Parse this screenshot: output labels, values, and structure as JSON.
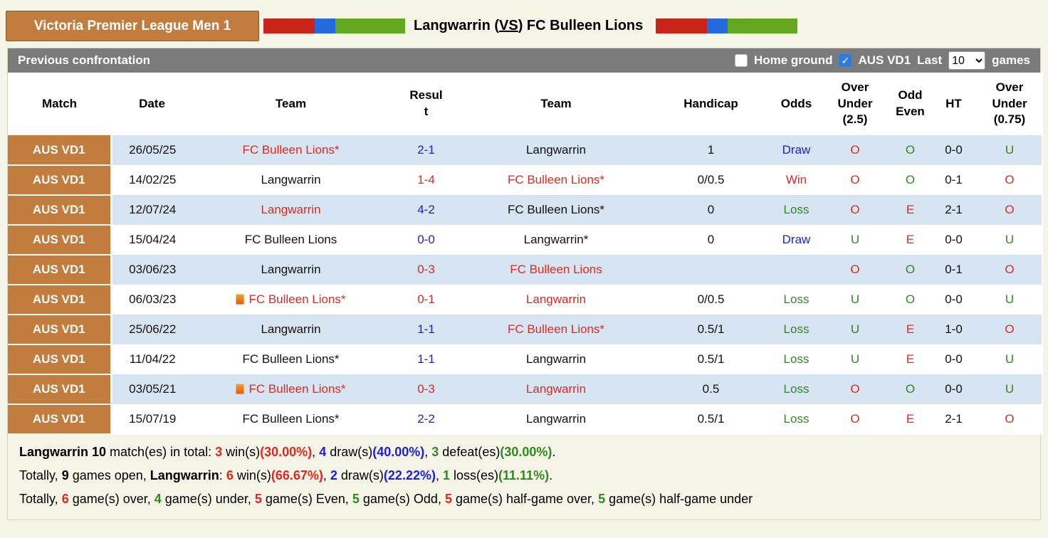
{
  "colors": {
    "red": "#e0281e",
    "blue": "#1b21d8",
    "green": "#2e8a1f",
    "orange": "#c17c3e",
    "row_alt": "#d7e4f1",
    "toolbar_gray": "#7b7b7b",
    "checkbox_blue": "#2e7ce0",
    "page_bg": "#f5f4e7",
    "flag_red": "#c9241a",
    "flag_blue": "#2469dd",
    "flag_green": "#63a81e"
  },
  "header": {
    "league": "Victoria Premier League Men 1",
    "home_team": "Langwarrin",
    "vs_open": " (",
    "vs_label": "VS",
    "vs_close": ") ",
    "away_team": "FC Bulleen Lions"
  },
  "toolbar": {
    "title": "Previous confrontation",
    "home_ground": {
      "label": "Home ground",
      "checked": false
    },
    "league_filter": {
      "label": "AUS VD1",
      "checked": true
    },
    "last_label": "Last",
    "games_count": "10",
    "games_label": "games"
  },
  "table": {
    "headers": [
      "Match",
      "Date",
      "Team",
      "Resul\nt",
      "Team",
      "Handicap",
      "Odds",
      "Over\nUnder\n(2.5)",
      "Odd\nEven",
      "HT",
      "Over\nUnder\n(0.75)"
    ],
    "rows": [
      {
        "match": "AUS VD1",
        "date": "26/05/25",
        "team1": {
          "text": "FC Bulleen Lions*",
          "color": "red",
          "icon": false
        },
        "result": {
          "text": "2-1",
          "color": "blue"
        },
        "team2": {
          "text": "Langwarrin",
          "color": "black"
        },
        "handicap": "1",
        "odds": {
          "text": "Draw",
          "color": "blue"
        },
        "over_under_25": {
          "text": "O",
          "color": "red"
        },
        "odd_even": {
          "text": "O",
          "color": "green"
        },
        "ht": "0-0",
        "over_under_075": {
          "text": "U",
          "color": "green"
        }
      },
      {
        "match": "AUS VD1",
        "date": "14/02/25",
        "team1": {
          "text": "Langwarrin",
          "color": "black",
          "icon": false
        },
        "result": {
          "text": "1-4",
          "color": "red"
        },
        "team2": {
          "text": "FC Bulleen Lions*",
          "color": "red"
        },
        "handicap": "0/0.5",
        "odds": {
          "text": "Win",
          "color": "red"
        },
        "over_under_25": {
          "text": "O",
          "color": "red"
        },
        "odd_even": {
          "text": "O",
          "color": "green"
        },
        "ht": "0-1",
        "over_under_075": {
          "text": "O",
          "color": "red"
        }
      },
      {
        "match": "AUS VD1",
        "date": "12/07/24",
        "team1": {
          "text": "Langwarrin",
          "color": "red",
          "icon": false
        },
        "result": {
          "text": "4-2",
          "color": "blue"
        },
        "team2": {
          "text": "FC Bulleen Lions*",
          "color": "black"
        },
        "handicap": "0",
        "odds": {
          "text": "Loss",
          "color": "green"
        },
        "over_under_25": {
          "text": "O",
          "color": "red"
        },
        "odd_even": {
          "text": "E",
          "color": "red"
        },
        "ht": "2-1",
        "over_under_075": {
          "text": "O",
          "color": "red"
        }
      },
      {
        "match": "AUS VD1",
        "date": "15/04/24",
        "team1": {
          "text": "FC Bulleen Lions",
          "color": "black",
          "icon": false
        },
        "result": {
          "text": "0-0",
          "color": "blue"
        },
        "team2": {
          "text": "Langwarrin*",
          "color": "black"
        },
        "handicap": "0",
        "odds": {
          "text": "Draw",
          "color": "blue"
        },
        "over_under_25": {
          "text": "U",
          "color": "green"
        },
        "odd_even": {
          "text": "E",
          "color": "red"
        },
        "ht": "0-0",
        "over_under_075": {
          "text": "U",
          "color": "green"
        }
      },
      {
        "match": "AUS VD1",
        "date": "03/06/23",
        "team1": {
          "text": "Langwarrin",
          "color": "black",
          "icon": false
        },
        "result": {
          "text": "0-3",
          "color": "red"
        },
        "team2": {
          "text": "FC Bulleen Lions",
          "color": "red"
        },
        "handicap": "",
        "odds": {
          "text": "",
          "color": "black"
        },
        "over_under_25": {
          "text": "O",
          "color": "red"
        },
        "odd_even": {
          "text": "O",
          "color": "green"
        },
        "ht": "0-1",
        "over_under_075": {
          "text": "O",
          "color": "red"
        }
      },
      {
        "match": "AUS VD1",
        "date": "06/03/23",
        "team1": {
          "text": "FC Bulleen Lions*",
          "color": "red",
          "icon": true
        },
        "result": {
          "text": "0-1",
          "color": "red"
        },
        "team2": {
          "text": "Langwarrin",
          "color": "red"
        },
        "handicap": "0/0.5",
        "odds": {
          "text": "Loss",
          "color": "green"
        },
        "over_under_25": {
          "text": "U",
          "color": "green"
        },
        "odd_even": {
          "text": "O",
          "color": "green"
        },
        "ht": "0-0",
        "over_under_075": {
          "text": "U",
          "color": "green"
        }
      },
      {
        "match": "AUS VD1",
        "date": "25/06/22",
        "team1": {
          "text": "Langwarrin",
          "color": "black",
          "icon": false
        },
        "result": {
          "text": "1-1",
          "color": "blue"
        },
        "team2": {
          "text": "FC Bulleen Lions*",
          "color": "red"
        },
        "handicap": "0.5/1",
        "odds": {
          "text": "Loss",
          "color": "green"
        },
        "over_under_25": {
          "text": "U",
          "color": "green"
        },
        "odd_even": {
          "text": "E",
          "color": "red"
        },
        "ht": "1-0",
        "over_under_075": {
          "text": "O",
          "color": "red"
        }
      },
      {
        "match": "AUS VD1",
        "date": "11/04/22",
        "team1": {
          "text": "FC Bulleen Lions*",
          "color": "black",
          "icon": false
        },
        "result": {
          "text": "1-1",
          "color": "blue"
        },
        "team2": {
          "text": "Langwarrin",
          "color": "black"
        },
        "handicap": "0.5/1",
        "odds": {
          "text": "Loss",
          "color": "green"
        },
        "over_under_25": {
          "text": "U",
          "color": "green"
        },
        "odd_even": {
          "text": "E",
          "color": "red"
        },
        "ht": "0-0",
        "over_under_075": {
          "text": "U",
          "color": "green"
        }
      },
      {
        "match": "AUS VD1",
        "date": "03/05/21",
        "team1": {
          "text": "FC Bulleen Lions*",
          "color": "red",
          "icon": true
        },
        "result": {
          "text": "0-3",
          "color": "red"
        },
        "team2": {
          "text": "Langwarrin",
          "color": "red"
        },
        "handicap": "0.5",
        "odds": {
          "text": "Loss",
          "color": "green"
        },
        "over_under_25": {
          "text": "O",
          "color": "red"
        },
        "odd_even": {
          "text": "O",
          "color": "green"
        },
        "ht": "0-0",
        "over_under_075": {
          "text": "U",
          "color": "green"
        }
      },
      {
        "match": "AUS VD1",
        "date": "15/07/19",
        "team1": {
          "text": "FC Bulleen Lions*",
          "color": "black",
          "icon": false
        },
        "result": {
          "text": "2-2",
          "color": "blue"
        },
        "team2": {
          "text": "Langwarrin",
          "color": "black"
        },
        "handicap": "0.5/1",
        "odds": {
          "text": "Loss",
          "color": "green"
        },
        "over_under_25": {
          "text": "O",
          "color": "red"
        },
        "odd_even": {
          "text": "E",
          "color": "red"
        },
        "ht": "2-1",
        "over_under_075": {
          "text": "O",
          "color": "red"
        }
      }
    ]
  },
  "summary": [
    [
      {
        "t": "Langwarrin 10",
        "b": true
      },
      {
        "t": " match(es) in total: "
      },
      {
        "t": "3",
        "c": "red",
        "b": true
      },
      {
        "t": " win(s)"
      },
      {
        "t": "(30.00%)",
        "c": "red",
        "b": true
      },
      {
        "t": ", "
      },
      {
        "t": "4",
        "c": "blue",
        "b": true
      },
      {
        "t": " draw(s)"
      },
      {
        "t": "(40.00%)",
        "c": "blue",
        "b": true
      },
      {
        "t": ", "
      },
      {
        "t": "3",
        "c": "green",
        "b": true
      },
      {
        "t": " defeat(es)"
      },
      {
        "t": "(30.00%)",
        "c": "green",
        "b": true
      },
      {
        "t": "."
      }
    ],
    [
      {
        "t": "Totally, "
      },
      {
        "t": "9",
        "b": true
      },
      {
        "t": " games open, "
      },
      {
        "t": "Langwarrin",
        "b": true
      },
      {
        "t": ": "
      },
      {
        "t": "6",
        "c": "red",
        "b": true
      },
      {
        "t": " win(s)"
      },
      {
        "t": "(66.67%)",
        "c": "red",
        "b": true
      },
      {
        "t": ", "
      },
      {
        "t": "2",
        "c": "blue",
        "b": true
      },
      {
        "t": " draw(s)"
      },
      {
        "t": "(22.22%)",
        "c": "blue",
        "b": true
      },
      {
        "t": ", "
      },
      {
        "t": "1",
        "c": "green",
        "b": true
      },
      {
        "t": " loss(es)"
      },
      {
        "t": "(11.11%)",
        "c": "green",
        "b": true
      },
      {
        "t": "."
      }
    ],
    [
      {
        "t": "Totally, "
      },
      {
        "t": "6",
        "c": "red",
        "b": true
      },
      {
        "t": " game(s) over, "
      },
      {
        "t": "4",
        "c": "green",
        "b": true
      },
      {
        "t": " game(s) under, "
      },
      {
        "t": "5",
        "c": "red",
        "b": true
      },
      {
        "t": " game(s) Even, "
      },
      {
        "t": "5",
        "c": "green",
        "b": true
      },
      {
        "t": " game(s) Odd, "
      },
      {
        "t": "5",
        "c": "red",
        "b": true
      },
      {
        "t": " game(s) half-game over, "
      },
      {
        "t": "5",
        "c": "green",
        "b": true
      },
      {
        "t": " game(s) half-game under"
      }
    ]
  ]
}
